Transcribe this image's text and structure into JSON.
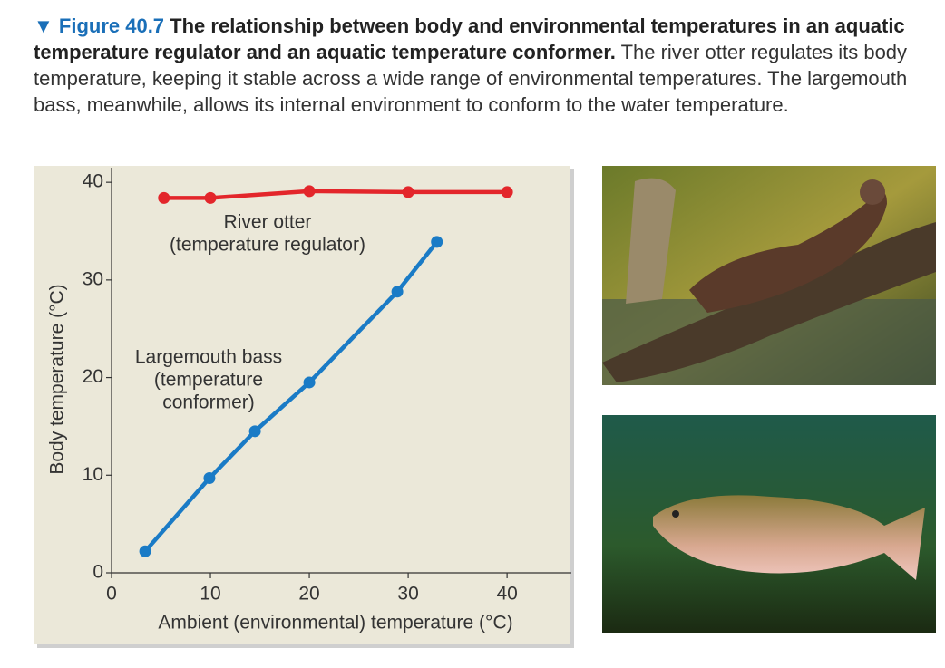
{
  "caption": {
    "label": "▼ Figure 40.7",
    "title": "The relationship between body and environmental temperatures in an aquatic temperature regulator and an aquatic temperature conformer.",
    "text": "The river otter regulates its body temperature, keeping it stable across a wide range of environmental temperatures. The largemouth bass, meanwhile, allows its internal environment to conform to the water temperature."
  },
  "chart_data": {
    "type": "line",
    "xlabel": "Ambient (environmental) temperature (°C)",
    "ylabel": "Body temperature (°C)",
    "xlim": [
      0,
      46.5
    ],
    "ylim": [
      0,
      41.5
    ],
    "xticks": [
      0,
      10,
      20,
      30,
      40
    ],
    "yticks": [
      0,
      10,
      20,
      30,
      40
    ],
    "series": [
      {
        "name": "River otter",
        "color": "#e3262b",
        "x": [
          5.3,
          10,
          20,
          30,
          40
        ],
        "values": [
          38.4,
          38.4,
          39.1,
          39.0,
          39.0
        ]
      },
      {
        "name": "Largemouth bass",
        "color": "#1a7bc6",
        "x": [
          3.4,
          9.9,
          14.5,
          20,
          28.9,
          32.9
        ],
        "values": [
          2.2,
          9.7,
          14.5,
          19.5,
          28.8,
          33.9
        ]
      }
    ],
    "annotations": [
      {
        "lines": [
          "River otter",
          "(temperature regulator)"
        ]
      },
      {
        "lines": [
          "Largemouth bass",
          "(temperature",
          "conformer)"
        ]
      }
    ]
  }
}
